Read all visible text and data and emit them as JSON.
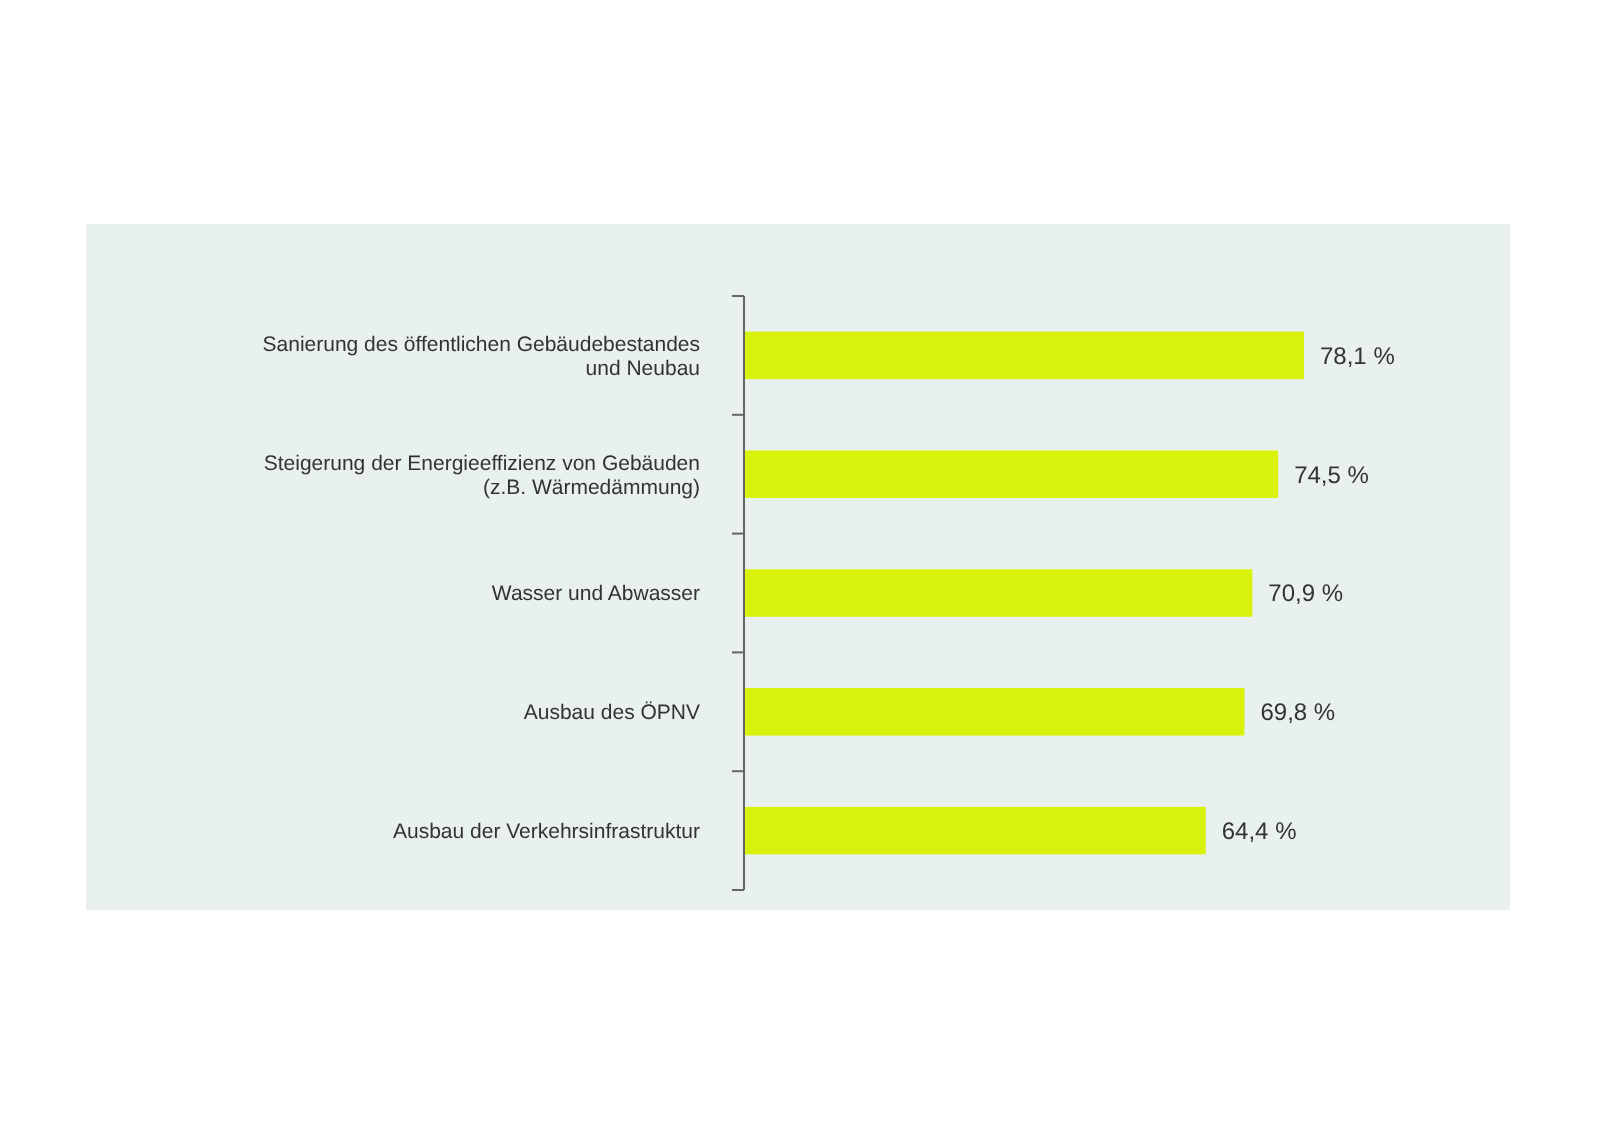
{
  "chart_data": {
    "type": "bar",
    "orientation": "horizontal",
    "categories": [
      "Sanierung des öffentlichen Gebäudebestandes\nund Neubau",
      "Steigerung der Energieeffizienz von Gebäuden\n(z.B. Wärmedämmung)",
      "Wasser und Abwasser",
      "Ausbau des ÖPNV",
      "Ausbau der Verkehrsinfrastruktur"
    ],
    "values": [
      78.1,
      74.5,
      70.9,
      69.8,
      64.4
    ],
    "value_labels": [
      "78,1 %",
      "74,5 %",
      "70,9 %",
      "69,8 %",
      "64,4 %"
    ],
    "color": "#d9f20c"
  }
}
